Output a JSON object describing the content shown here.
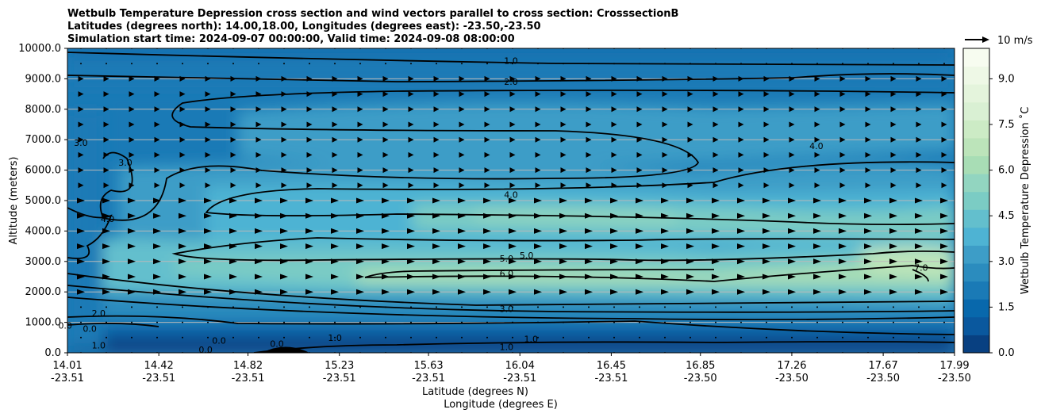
{
  "chart_data": {
    "type": "heatmap",
    "title_lines": [
      "Wetbulb Temperature Depression cross section and wind vectors parallel to cross section: CrosssectionB",
      "Latitudes (degrees north): 14.00,18.00, Longitudes (degrees east): -23.50,-23.50",
      "Simulation start time: 2024-09-07 00:00:00, Valid time: 2024-09-08 08:00:00"
    ],
    "ylabel": "Altitude (meters)",
    "xlabel_lat": "Latitude (degrees N)",
    "xlabel_lon": "Longitude (degrees E)",
    "colorbar_label": "Wetbulb Temperature Depression ˚C",
    "quiver_key_label": "10 m/s",
    "ylim": [
      0,
      10000
    ],
    "y_ticks": [
      "0.0",
      "1000.0",
      "2000.0",
      "3000.0",
      "4000.0",
      "5000.0",
      "6000.0",
      "7000.0",
      "8000.0",
      "9000.0",
      "10000.0"
    ],
    "x_ticks_lat": [
      "14.01",
      "14.42",
      "14.82",
      "15.23",
      "15.63",
      "16.04",
      "16.45",
      "16.85",
      "17.26",
      "17.67",
      "17.99"
    ],
    "x_ticks_lon": [
      "-23.51",
      "-23.51",
      "-23.51",
      "-23.51",
      "-23.51",
      "-23.51",
      "-23.51",
      "-23.50",
      "-23.50",
      "-23.50",
      "-23.50"
    ],
    "colorbar_range": [
      0,
      10
    ],
    "colorbar_ticks": [
      "0.0",
      "1.5",
      "3.0",
      "4.5",
      "6.0",
      "7.5",
      "9.0"
    ],
    "colorbar_colors": [
      "#084081",
      "#0a589e",
      "#0868ac",
      "#1a7ab6",
      "#2b8cbe",
      "#3d9dc7",
      "#4eb3d3",
      "#63bfcd",
      "#7bccc4",
      "#92d5c0",
      "#a8ddb5",
      "#bce4ba",
      "#ccebc5",
      "#d9f0d3",
      "#e4f4dc",
      "#eef8e6",
      "#f7fcf0"
    ],
    "contour_labels": [
      {
        "text": "1.0",
        "x": 16.0,
        "y": 9600
      },
      {
        "text": "2.0",
        "x": 16.0,
        "y": 8900
      },
      {
        "text": "3.0",
        "x": 14.07,
        "y": 6900
      },
      {
        "text": "3.0",
        "x": 14.27,
        "y": 6250
      },
      {
        "text": "4.0",
        "x": 16.0,
        "y": 5200
      },
      {
        "text": "4.0",
        "x": 14.19,
        "y": 4400
      },
      {
        "text": "4.0",
        "x": 17.37,
        "y": 6800
      },
      {
        "text": "5.0",
        "x": 15.98,
        "y": 3100
      },
      {
        "text": "5.0",
        "x": 16.07,
        "y": 3200
      },
      {
        "text": "6.0",
        "x": 15.98,
        "y": 2600
      },
      {
        "text": "7.0",
        "x": 17.84,
        "y": 2800
      },
      {
        "text": "3.0",
        "x": 15.98,
        "y": 1450
      },
      {
        "text": "2.0",
        "x": 14.15,
        "y": 1300
      },
      {
        "text": "1.0",
        "x": 16.09,
        "y": 450
      },
      {
        "text": "1.0",
        "x": 15.98,
        "y": 200
      },
      {
        "text": "1.0",
        "x": 15.21,
        "y": 500
      },
      {
        "text": "0.0",
        "x": 14.11,
        "y": 800
      },
      {
        "text": "0.0",
        "x": 14.69,
        "y": 400
      },
      {
        "text": "0.0",
        "x": 14.95,
        "y": 300
      },
      {
        "text": "0.0",
        "x": 14.0,
        "y": 900
      },
      {
        "text": "1.0",
        "x": 14.15,
        "y": 250
      },
      {
        "text": "0.0",
        "x": 14.63,
        "y": 100
      }
    ]
  }
}
